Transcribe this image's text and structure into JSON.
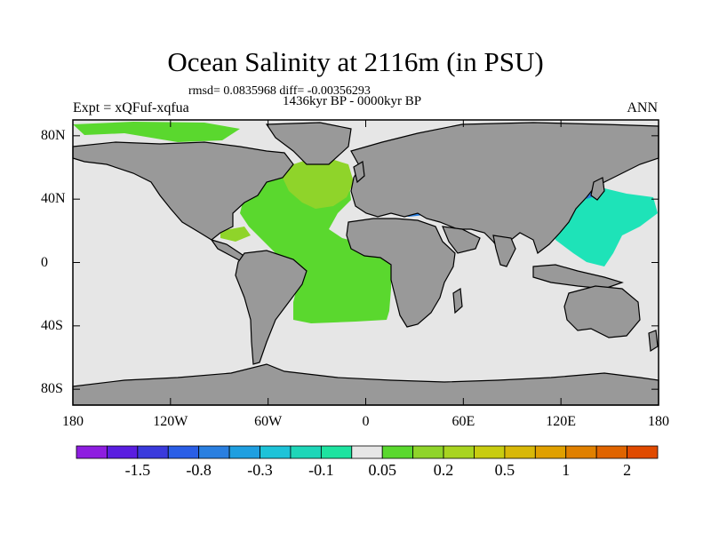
{
  "header": {
    "title": "Ocean Salinity at 2116m (in PSU)",
    "stats": "rmsd= 0.0835968 diff= -0.00356293",
    "period": "1436kyr BP - 0000kyr BP",
    "experiment": "Expt = xQFuf-xqfua",
    "season": "ANN"
  },
  "axes": {
    "lat_ticks": [
      {
        "label": "80N",
        "lat": 80
      },
      {
        "label": "40N",
        "lat": 40
      },
      {
        "label": "0",
        "lat": 0
      },
      {
        "label": "40S",
        "lat": -40
      },
      {
        "label": "80S",
        "lat": -80
      }
    ],
    "lon_ticks": [
      {
        "label": "180",
        "lon": -180
      },
      {
        "label": "120W",
        "lon": -120
      },
      {
        "label": "60W",
        "lon": -60
      },
      {
        "label": "0",
        "lon": 0
      },
      {
        "label": "60E",
        "lon": 60
      },
      {
        "label": "120E",
        "lon": 120
      },
      {
        "label": "180",
        "lon": 180
      }
    ]
  },
  "colors": {
    "land": "#999999",
    "ocean_near_zero": "#e6e6e6",
    "atlantic_fill": "#5ad82e",
    "north_atlantic_fill": "#8fd42a",
    "pacific_anomaly": "#1ee3b8",
    "med_anomaly": "#2a7fe0"
  },
  "colorbar": {
    "swatches": [
      "#8e1ee0",
      "#5a1ee0",
      "#3a3adc",
      "#2a5ee6",
      "#2a7fe0",
      "#1f9fe0",
      "#1ec3d8",
      "#1ed6b8",
      "#1ee3a0",
      "#e6e6e6",
      "#5ad82e",
      "#8fd42a",
      "#a8d420",
      "#c8cc10",
      "#d8b808",
      "#e0a000",
      "#e08000",
      "#e06400",
      "#e04a00"
    ],
    "labels": [
      {
        "text": "-1.5",
        "index": 2
      },
      {
        "text": "-0.8",
        "index": 4
      },
      {
        "text": "-0.3",
        "index": 6
      },
      {
        "text": "-0.1",
        "index": 8
      },
      {
        "text": "0.05",
        "index": 10
      },
      {
        "text": "0.2",
        "index": 12
      },
      {
        "text": "0.5",
        "index": 14
      },
      {
        "text": "1",
        "index": 16
      },
      {
        "text": "2",
        "index": 18
      }
    ]
  }
}
